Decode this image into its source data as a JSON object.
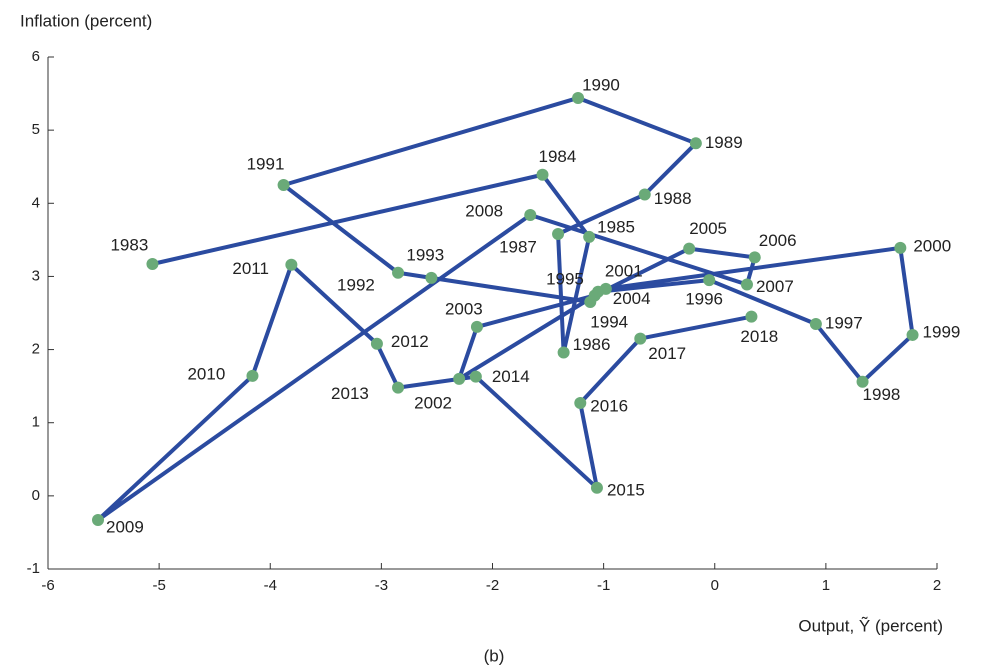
{
  "chart_data": {
    "type": "line",
    "y_label": "Inflation (percent)",
    "x_label": "Output, Ỹ (percent)",
    "caption": "(b)",
    "labels": [
      "1983",
      "1984",
      "1985",
      "1986",
      "1987",
      "1988",
      "1989",
      "1990",
      "1991",
      "1992",
      "1993",
      "1994",
      "1995",
      "1996",
      "1997",
      "1998",
      "1999",
      "2000",
      "2001",
      "2002",
      "2003",
      "2004",
      "2005",
      "2006",
      "2007",
      "2008",
      "2009",
      "2010",
      "2011",
      "2012",
      "2013",
      "2014",
      "2015",
      "2016",
      "2017",
      "2018"
    ],
    "x": [
      -5.06,
      -1.55,
      -1.13,
      -1.36,
      -1.41,
      -0.63,
      -0.17,
      -1.23,
      -3.88,
      -2.85,
      -2.55,
      -1.12,
      -1.05,
      -0.05,
      0.91,
      1.33,
      1.78,
      1.67,
      -0.98,
      -2.3,
      -2.14,
      -1.08,
      -0.23,
      0.36,
      0.29,
      -1.66,
      -5.55,
      -4.16,
      -3.81,
      -3.04,
      -2.85,
      -2.15,
      -1.06,
      -1.21,
      -0.67,
      0.33
    ],
    "values": [
      3.17,
      4.39,
      3.54,
      1.96,
      3.58,
      4.12,
      4.82,
      5.44,
      4.25,
      3.05,
      2.98,
      2.65,
      2.79,
      2.95,
      2.35,
      1.56,
      2.2,
      3.39,
      2.83,
      1.6,
      2.31,
      2.74,
      3.38,
      3.26,
      2.89,
      3.84,
      -0.33,
      1.64,
      3.16,
      2.08,
      1.48,
      1.63,
      0.11,
      1.27,
      2.15,
      2.45
    ],
    "color": "#2b4ba0",
    "marker_color": "#6aaa78",
    "xlim": [
      -6,
      2
    ],
    "xticks": [
      -6,
      -5,
      -4,
      -3,
      -2,
      -1,
      0,
      1,
      2
    ],
    "ylim": [
      -1,
      6
    ],
    "yticks": [
      -1,
      0,
      1,
      2,
      3,
      4,
      5,
      6
    ]
  }
}
